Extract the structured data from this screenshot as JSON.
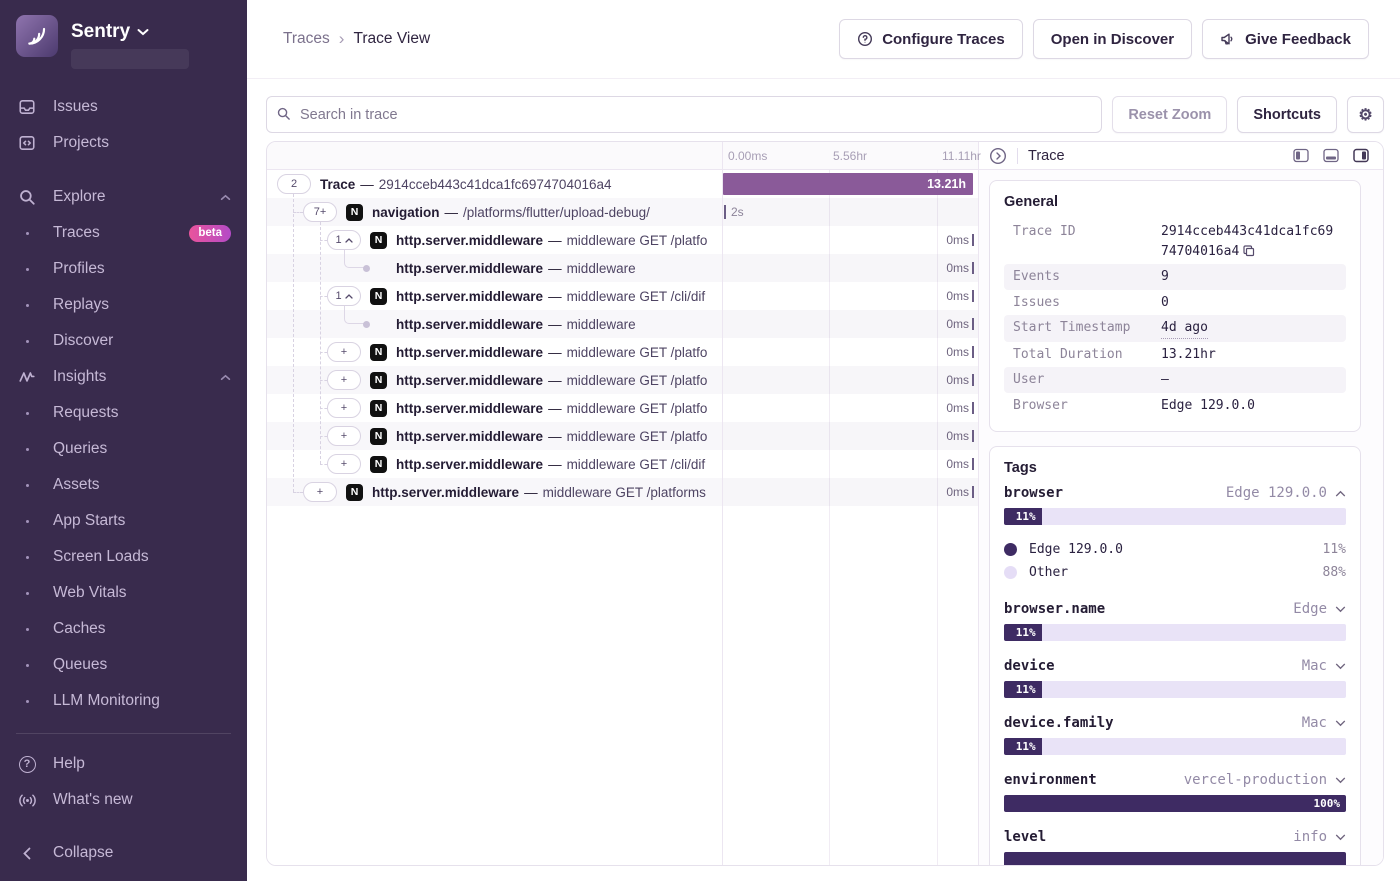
{
  "colors": {
    "sidebar_bg": "#392b4d",
    "beta_gradient_from": "#e9549c",
    "beta_gradient_to": "#b44bc7",
    "trace_bar_purple": "#8a5a99",
    "tag_fill_purple": "#3e2b63",
    "tag_track_lavender": "#e9e3f7"
  },
  "sidebar": {
    "brand": "Sentry",
    "items_top": [
      {
        "label": "Issues"
      },
      {
        "label": "Projects"
      }
    ],
    "explore": {
      "label": "Explore"
    },
    "explore_items": [
      {
        "label": "Traces",
        "badge": "beta"
      },
      {
        "label": "Profiles"
      },
      {
        "label": "Replays"
      },
      {
        "label": "Discover"
      }
    ],
    "insights": {
      "label": "Insights"
    },
    "insights_items": [
      {
        "label": "Requests"
      },
      {
        "label": "Queries"
      },
      {
        "label": "Assets"
      },
      {
        "label": "App Starts"
      },
      {
        "label": "Screen Loads"
      },
      {
        "label": "Web Vitals"
      },
      {
        "label": "Caches"
      },
      {
        "label": "Queues"
      },
      {
        "label": "LLM Monitoring"
      }
    ],
    "footer_items": [
      {
        "label": "Help"
      },
      {
        "label": "What's new"
      }
    ],
    "collapse_label": "Collapse"
  },
  "breadcrumb": {
    "parent": "Traces",
    "sep": "›",
    "current": "Trace View"
  },
  "header_buttons": {
    "configure": "Configure Traces",
    "discover": "Open in Discover",
    "feedback": "Give Feedback"
  },
  "toolbar": {
    "search_placeholder": "Search in trace",
    "reset_zoom": "Reset Zoom",
    "shortcuts": "Shortcuts"
  },
  "timeline": {
    "ticks": [
      "0.00ms",
      "5.56hr",
      "11.11hr"
    ]
  },
  "trace": {
    "sep": "—",
    "rows": [
      {
        "count": "2",
        "op": "Trace",
        "desc": "2914cceb443c41dca1fc6974704016a4",
        "duration": "13.21h"
      },
      {
        "count": "7+",
        "op": "navigation",
        "desc": "/platforms/flutter/upload-debug/",
        "duration": "2s"
      },
      {
        "count": "1",
        "op": "http.server.middleware",
        "desc": "middleware GET /platfo",
        "duration": "0ms"
      },
      {
        "count": "",
        "op": "http.server.middleware",
        "desc": "middleware",
        "duration": "0ms"
      },
      {
        "count": "1",
        "op": "http.server.middleware",
        "desc": "middleware GET /cli/dif",
        "duration": "0ms"
      },
      {
        "count": "",
        "op": "http.server.middleware",
        "desc": "middleware",
        "duration": "0ms"
      },
      {
        "count": "+",
        "op": "http.server.middleware",
        "desc": "middleware GET /platfo",
        "duration": "0ms"
      },
      {
        "count": "+",
        "op": "http.server.middleware",
        "desc": "middleware GET /platfo",
        "duration": "0ms"
      },
      {
        "count": "+",
        "op": "http.server.middleware",
        "desc": "middleware GET /platfo",
        "duration": "0ms"
      },
      {
        "count": "+",
        "op": "http.server.middleware",
        "desc": "middleware GET /platfo",
        "duration": "0ms"
      },
      {
        "count": "+",
        "op": "http.server.middleware",
        "desc": "middleware GET /cli/dif",
        "duration": "0ms"
      },
      {
        "count": "+",
        "op": "http.server.middleware",
        "desc": "middleware GET /platforms",
        "duration": "0ms"
      }
    ]
  },
  "drawer": {
    "title": "Trace",
    "general": {
      "title": "General",
      "rows": [
        {
          "label": "Trace ID",
          "value": "2914cceb443c41dca1fc6974704016a4"
        },
        {
          "label": "Events",
          "value": "9"
        },
        {
          "label": "Issues",
          "value": "0"
        },
        {
          "label": "Start Timestamp",
          "value": "4d ago"
        },
        {
          "label": "Total Duration",
          "value": "13.21hr"
        },
        {
          "label": "User",
          "value": "—"
        },
        {
          "label": "Browser",
          "value": "Edge 129.0.0"
        }
      ]
    },
    "tags": {
      "title": "Tags",
      "items": [
        {
          "name": "browser",
          "value": "Edge 129.0.0",
          "pct": "11%",
          "pct_label": "11%",
          "legend": [
            {
              "label": "Edge 129.0.0",
              "pct": "11%"
            },
            {
              "label": "Other",
              "pct": "88%"
            }
          ]
        },
        {
          "name": "browser.name",
          "value": "Edge",
          "pct": "11%",
          "pct_label": "11%"
        },
        {
          "name": "device",
          "value": "Mac",
          "pct": "11%",
          "pct_label": "11%"
        },
        {
          "name": "device.family",
          "value": "Mac",
          "pct": "11%",
          "pct_label": "11%"
        },
        {
          "name": "environment",
          "value": "vercel-production",
          "pct": "100%",
          "pct_label": "100%"
        },
        {
          "name": "level",
          "value": "info",
          "pct": "100%",
          "pct_label": ""
        }
      ]
    }
  }
}
